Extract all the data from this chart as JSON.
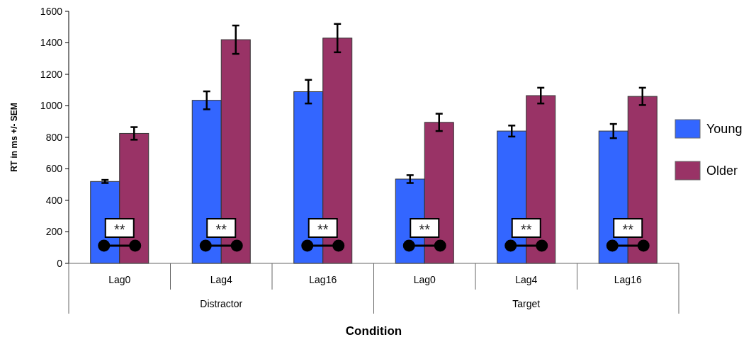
{
  "chart_data": {
    "type": "bar",
    "xlabel": "Condition",
    "ylabel": "RT in ms +/- SEM",
    "categories": [
      "Lag0",
      "Lag4",
      "Lag16",
      "Lag0",
      "Lag4",
      "Lag16"
    ],
    "series": [
      {
        "name": "Young",
        "color": "#3366ff",
        "values": [
          520,
          1035,
          1090,
          535,
          840,
          840
        ],
        "errors": [
          10,
          57,
          75,
          25,
          35,
          45
        ]
      },
      {
        "name": "Older",
        "color": "#993366",
        "values": [
          825,
          1420,
          1430,
          895,
          1065,
          1060
        ],
        "errors": [
          40,
          90,
          90,
          55,
          50,
          55
        ]
      }
    ],
    "ylim": [
      0,
      1600
    ],
    "yticks": [
      0,
      200,
      400,
      600,
      800,
      1000,
      1200,
      1400,
      1600
    ],
    "grid": false,
    "legend": "right",
    "annotations": [
      "**",
      "**",
      "**",
      "**",
      "**",
      "**",
      "Distractor",
      "Target"
    ]
  }
}
